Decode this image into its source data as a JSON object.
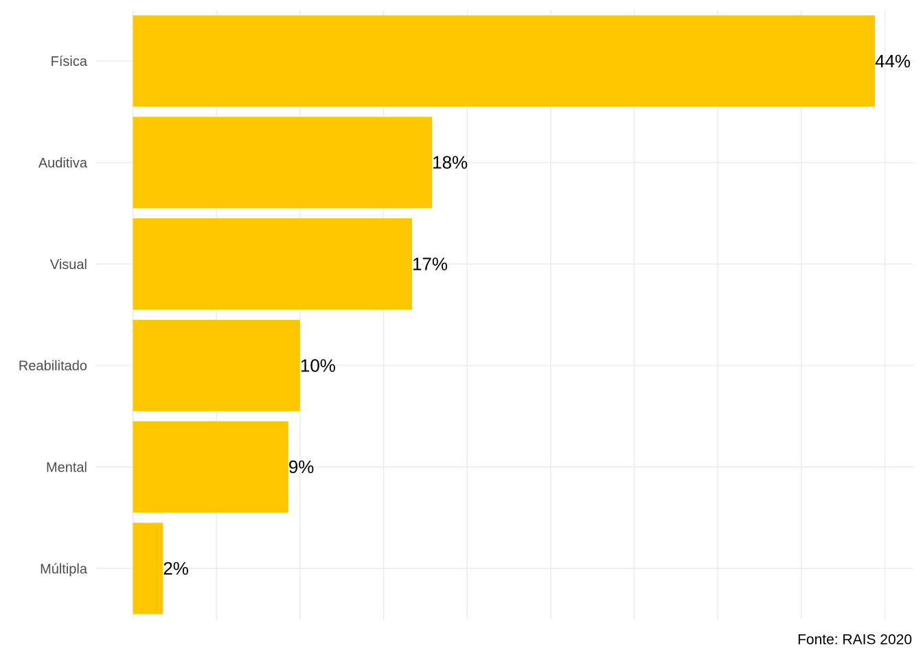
{
  "chart_data": {
    "type": "bar",
    "orientation": "horizontal",
    "categories": [
      "Física",
      "Auditiva",
      "Visual",
      "Reabilitado",
      "Mental",
      "Múltipla"
    ],
    "values": [
      44.4,
      17.9,
      16.7,
      10.0,
      9.3,
      1.8
    ],
    "value_labels": [
      "44%",
      "18%",
      "17%",
      "10%",
      "9%",
      "2%"
    ],
    "color": "#ffc700",
    "xlim": [
      -2.2,
      46.7
    ],
    "xticks": [
      0,
      5,
      10,
      15,
      20,
      25,
      30,
      35,
      40,
      45
    ],
    "grid": true,
    "caption": "Fonte: RAIS 2020"
  }
}
